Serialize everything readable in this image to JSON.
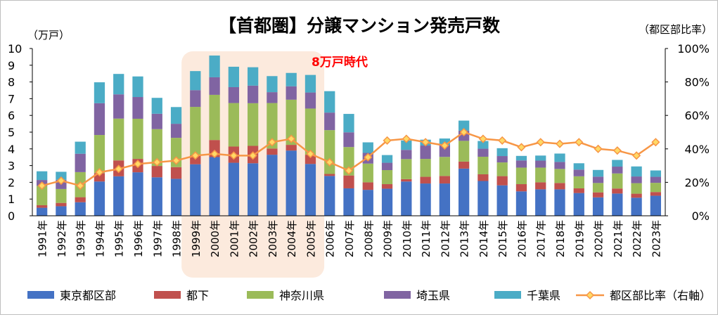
{
  "chart_data": {
    "type": "bar",
    "stacked": true,
    "title": "【首都圏】分譲マンション発売戸数",
    "ylabel_left": "（万戸）",
    "ylabel_right": "（都区部比率）",
    "annotation": "8万戸時代",
    "highlight_range": [
      "1999年",
      "2005年"
    ],
    "ylim": [
      0,
      10
    ],
    "ylim_right": [
      0,
      1
    ],
    "yticks_left": [
      "0",
      "1",
      "2",
      "3",
      "4",
      "5",
      "6",
      "7",
      "8",
      "9",
      "10"
    ],
    "yticks_right": [
      "0%",
      "20%",
      "40%",
      "60%",
      "80%",
      "100%"
    ],
    "legend_position": "bottom",
    "grid": false,
    "categories": [
      "1991年",
      "1992年",
      "1993年",
      "1994年",
      "1995年",
      "1996年",
      "1997年",
      "1998年",
      "1999年",
      "2000年",
      "2001年",
      "2002年",
      "2003年",
      "2004年",
      "2005年",
      "2006年",
      "2007年",
      "2008年",
      "2009年",
      "2010年",
      "2011年",
      "2012年",
      "2013年",
      "2014年",
      "2015年",
      "2016年",
      "2017年",
      "2018年",
      "2019年",
      "2020年",
      "2021年",
      "2022年",
      "2023年"
    ],
    "series": [
      {
        "name": "東京都区部",
        "color": "#4472c4",
        "values": [
          0.48,
          0.57,
          0.81,
          2.05,
          2.36,
          2.6,
          2.3,
          2.21,
          3.08,
          3.51,
          3.17,
          3.14,
          3.65,
          3.9,
          3.1,
          2.38,
          1.64,
          1.55,
          1.62,
          2.05,
          1.93,
          1.93,
          2.82,
          2.08,
          1.82,
          1.46,
          1.58,
          1.58,
          1.36,
          1.1,
          1.33,
          1.08,
          1.2
        ]
      },
      {
        "name": "都下",
        "color": "#c0504d",
        "values": [
          0.15,
          0.2,
          0.3,
          0.5,
          0.95,
          0.8,
          0.68,
          0.7,
          0.53,
          1.02,
          0.97,
          1.04,
          0.37,
          0.34,
          0.55,
          0.12,
          0.77,
          0.45,
          0.27,
          0.14,
          0.4,
          0.45,
          0.42,
          0.4,
          0.55,
          0.43,
          0.42,
          0.38,
          0.28,
          0.3,
          0.3,
          0.24,
          0.22
        ]
      },
      {
        "name": "神奈川県",
        "color": "#9bbb59",
        "values": [
          1.16,
          0.83,
          1.5,
          2.28,
          2.5,
          2.4,
          2.2,
          1.75,
          2.9,
          2.7,
          2.6,
          2.55,
          2.72,
          2.7,
          2.76,
          2.62,
          1.7,
          1.12,
          0.84,
          1.2,
          1.07,
          1.14,
          1.24,
          1.05,
          0.82,
          0.99,
          0.88,
          0.84,
          0.72,
          0.56,
          0.9,
          0.63,
          0.55
        ]
      },
      {
        "name": "埼玉県",
        "color": "#8064a2",
        "values": [
          0.35,
          0.55,
          1.1,
          1.9,
          1.45,
          1.3,
          0.92,
          0.84,
          1.0,
          1.05,
          0.95,
          1.05,
          0.65,
          0.8,
          0.96,
          1.05,
          0.88,
          0.64,
          0.44,
          0.55,
          0.8,
          0.7,
          0.61,
          0.48,
          0.38,
          0.43,
          0.42,
          0.42,
          0.4,
          0.38,
          0.41,
          0.4,
          0.36
        ]
      },
      {
        "name": "千葉県",
        "color": "#4bacc6",
        "values": [
          0.52,
          0.48,
          0.72,
          1.25,
          1.22,
          1.23,
          0.95,
          1.0,
          1.14,
          1.3,
          1.22,
          1.1,
          0.96,
          0.8,
          1.05,
          1.28,
          1.1,
          0.63,
          0.46,
          0.56,
          0.35,
          0.4,
          0.6,
          0.46,
          0.47,
          0.27,
          0.3,
          0.5,
          0.38,
          0.4,
          0.4,
          0.6,
          0.38
        ]
      }
    ],
    "line_series": {
      "name": "都区部比率（右軸）",
      "color": "#f79646",
      "marker_color": "#ffd966",
      "axis": "right",
      "values": [
        0.18,
        0.21,
        0.18,
        0.26,
        0.28,
        0.31,
        0.32,
        0.33,
        0.36,
        0.37,
        0.36,
        0.36,
        0.44,
        0.46,
        0.37,
        0.32,
        0.27,
        0.35,
        0.45,
        0.46,
        0.44,
        0.42,
        0.5,
        0.46,
        0.45,
        0.41,
        0.44,
        0.43,
        0.44,
        0.4,
        0.39,
        0.36,
        0.44
      ]
    }
  }
}
